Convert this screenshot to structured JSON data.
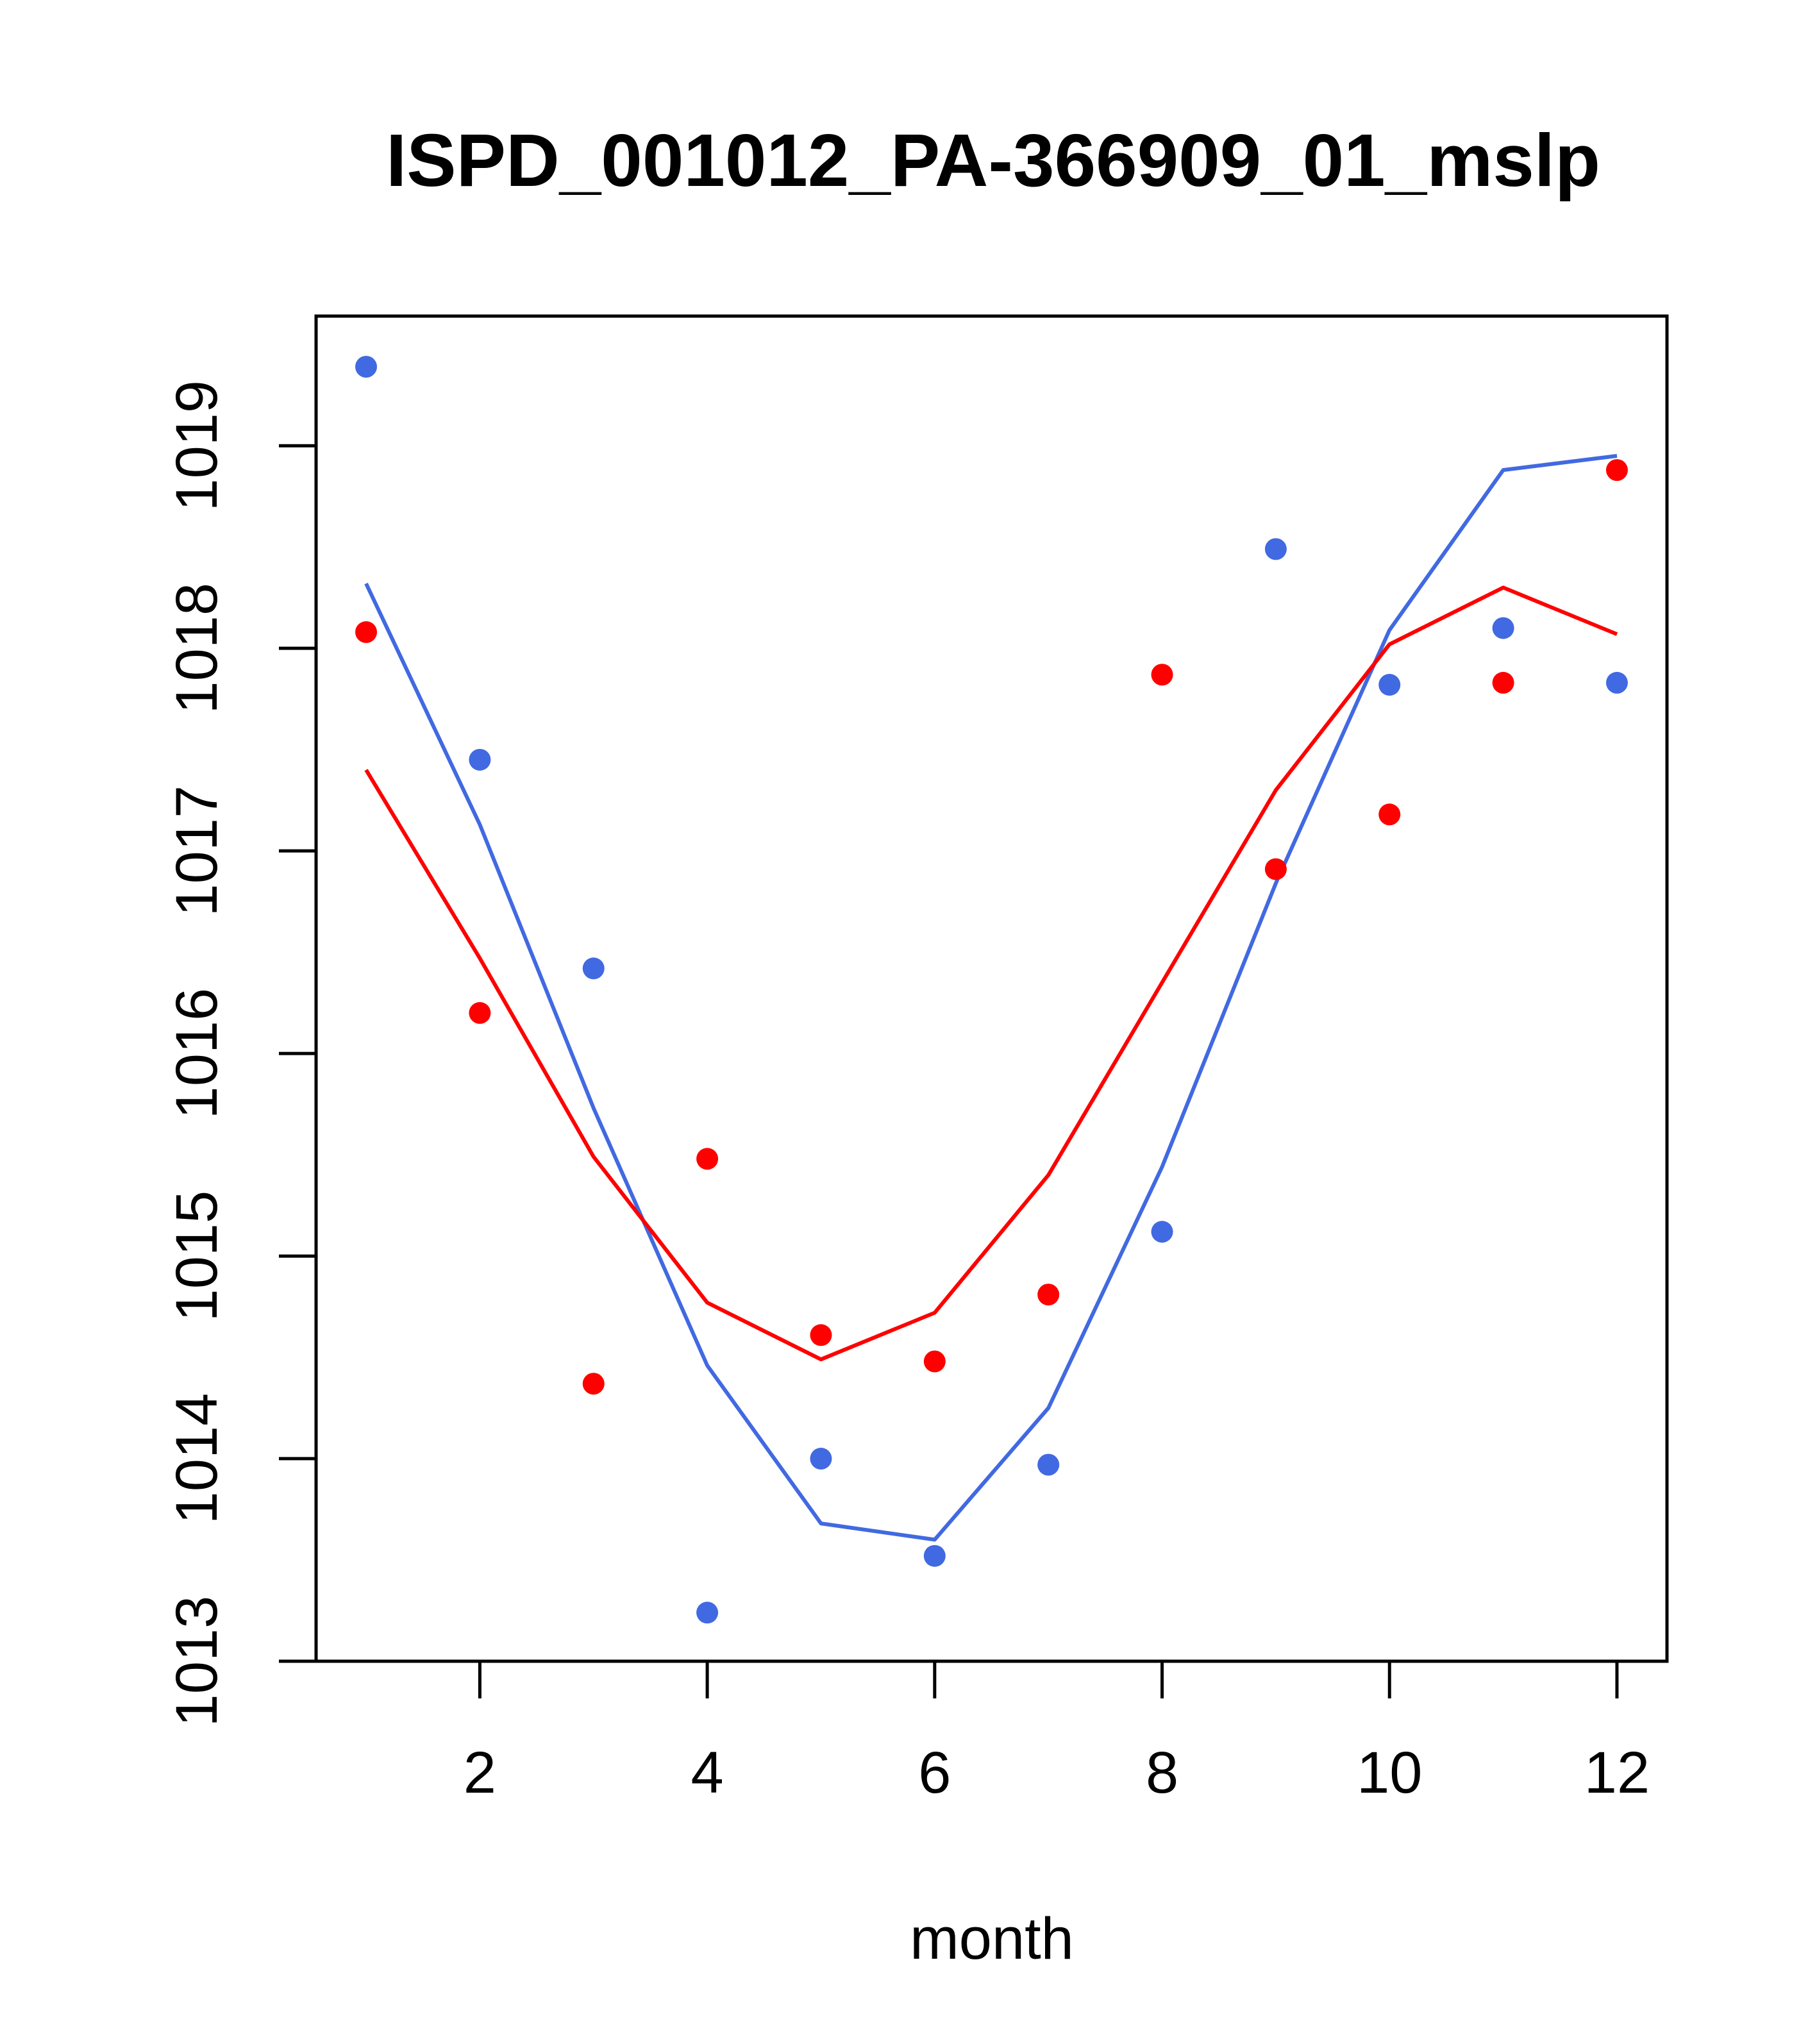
{
  "chart_data": {
    "type": "line",
    "title": "ISPD_001012_PA-366909_01_mslp",
    "xlabel": "month",
    "ylabel": "",
    "xlim": [
      0.56,
      12.44
    ],
    "ylim": [
      1013,
      1019.64
    ],
    "x_ticks": [
      2,
      4,
      6,
      8,
      10,
      12
    ],
    "y_ticks": [
      1013,
      1014,
      1015,
      1016,
      1017,
      1018,
      1019
    ],
    "x_tick_labels": [
      "2",
      "4",
      "6",
      "8",
      "10",
      "12"
    ],
    "y_tick_labels": [
      "1013",
      "1014",
      "1015",
      "1016",
      "1017",
      "1018",
      "1019"
    ],
    "x": [
      1,
      2,
      3,
      4,
      5,
      6,
      7,
      8,
      9,
      10,
      11,
      12
    ],
    "series": [
      {
        "name": "blue points",
        "kind": "points",
        "color": "#4169e1",
        "values": [
          1019.39,
          1017.45,
          1016.42,
          1013.24,
          1014.0,
          1013.52,
          1013.97,
          1015.12,
          1018.49,
          1017.82,
          1018.1,
          1017.83
        ]
      },
      {
        "name": "red points",
        "kind": "points",
        "color": "#ff0000",
        "values": [
          1018.08,
          1016.2,
          1014.37,
          1015.48,
          1014.61,
          1014.48,
          1014.81,
          1017.87,
          1016.91,
          1017.18,
          1017.83,
          1018.88
        ]
      },
      {
        "name": "blue line",
        "kind": "line",
        "color": "#4169e1",
        "values": [
          1018.32,
          1017.13,
          1015.73,
          1014.46,
          1013.68,
          1013.6,
          1014.25,
          1015.44,
          1016.84,
          1018.09,
          1018.88,
          1018.95
        ]
      },
      {
        "name": "red line",
        "kind": "line",
        "color": "#ff0000",
        "values": [
          1017.4,
          1016.47,
          1015.49,
          1014.77,
          1014.49,
          1014.72,
          1015.4,
          1016.35,
          1017.3,
          1018.02,
          1018.3,
          1018.07
        ]
      }
    ]
  }
}
